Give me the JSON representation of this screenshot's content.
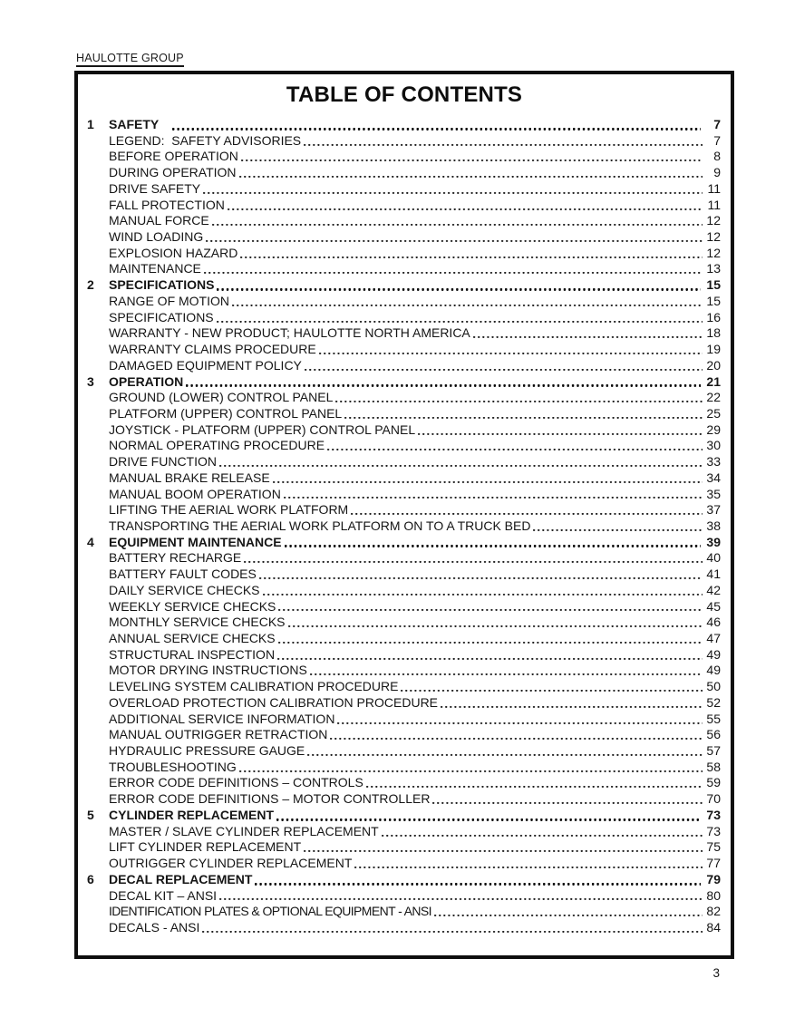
{
  "header": {
    "brand": "HAULOTTE GROUP"
  },
  "footer": {
    "page_number": "3"
  },
  "toc": {
    "title": "TABLE OF CONTENTS",
    "sections": [
      {
        "num": "1",
        "title": "SAFETY",
        "page": "7",
        "entries": [
          {
            "title": "LEGEND:  SAFETY ADVISORIES",
            "page": "7"
          },
          {
            "title": "BEFORE OPERATION",
            "page": "8"
          },
          {
            "title": "DURING OPERATION",
            "page": "9"
          },
          {
            "title": "DRIVE SAFETY",
            "page": "11"
          },
          {
            "title": "FALL PROTECTION",
            "page": "11"
          },
          {
            "title": "MANUAL FORCE",
            "page": "12"
          },
          {
            "title": "WIND LOADING",
            "page": "12"
          },
          {
            "title": "EXPLOSION HAZARD",
            "page": "12"
          },
          {
            "title": "MAINTENANCE",
            "page": "13"
          }
        ]
      },
      {
        "num": "2",
        "title": "SPECIFICATIONS",
        "page": "15",
        "entries": [
          {
            "title": "RANGE OF MOTION",
            "page": "15"
          },
          {
            "title": "SPECIFICATIONS",
            "page": "16"
          },
          {
            "title": "WARRANTY - NEW PRODUCT; HAULOTTE NORTH AMERICA",
            "page": "18"
          },
          {
            "title": "WARRANTY CLAIMS PROCEDURE",
            "page": "19"
          },
          {
            "title": "DAMAGED EQUIPMENT POLICY",
            "page": "20"
          }
        ]
      },
      {
        "num": "3",
        "title": "OPERATION",
        "page": "21",
        "entries": [
          {
            "title": "GROUND (LOWER) CONTROL PANEL",
            "page": "22"
          },
          {
            "title": "PLATFORM (UPPER) CONTROL PANEL",
            "page": "25"
          },
          {
            "title": "JOYSTICK - PLATFORM (UPPER) CONTROL PANEL",
            "page": "29"
          },
          {
            "title": "NORMAL OPERATING PROCEDURE",
            "page": "30"
          },
          {
            "title": "DRIVE FUNCTION",
            "page": "33"
          },
          {
            "title": "MANUAL BRAKE RELEASE",
            "page": "34"
          },
          {
            "title": "MANUAL BOOM OPERATION",
            "page": "35"
          },
          {
            "title": "LIFTING THE AERIAL WORK PLATFORM",
            "page": "37"
          },
          {
            "title": "TRANSPORTING THE AERIAL WORK PLATFORM ON TO A TRUCK BED",
            "page": "38"
          }
        ]
      },
      {
        "num": "4",
        "title": "EQUIPMENT MAINTENANCE",
        "page": "39",
        "entries": [
          {
            "title": "BATTERY RECHARGE",
            "page": "40"
          },
          {
            "title": "BATTERY FAULT CODES",
            "page": "41"
          },
          {
            "title": "DAILY SERVICE CHECKS",
            "page": "42"
          },
          {
            "title": "WEEKLY SERVICE CHECKS",
            "page": "45"
          },
          {
            "title": "MONTHLY SERVICE CHECKS",
            "page": "46"
          },
          {
            "title": "ANNUAL SERVICE CHECKS",
            "page": "47"
          },
          {
            "title": "STRUCTURAL INSPECTION",
            "page": "49"
          },
          {
            "title": "MOTOR DRYING INSTRUCTIONS",
            "page": "49"
          },
          {
            "title": "LEVELING SYSTEM CALIBRATION PROCEDURE",
            "page": "50"
          },
          {
            "title": "OVERLOAD PROTECTION CALIBRATION PROCEDURE",
            "page": "52"
          },
          {
            "title": "ADDITIONAL SERVICE INFORMATION",
            "page": "55"
          },
          {
            "title": "MANUAL OUTRIGGER RETRACTION",
            "page": "56"
          },
          {
            "title": "HYDRAULIC PRESSURE GAUGE",
            "page": "57"
          },
          {
            "title": "TROUBLESHOOTING",
            "page": "58"
          },
          {
            "title": "ERROR CODE DEFINITIONS – CONTROLS",
            "page": "59"
          },
          {
            "title": "ERROR CODE DEFINITIONS – MOTOR CONTROLLER",
            "page": "70"
          }
        ]
      },
      {
        "num": "5",
        "title": "CYLINDER REPLACEMENT",
        "page": "73",
        "entries": [
          {
            "title": "MASTER / SLAVE CYLINDER REPLACEMENT",
            "page": "73"
          },
          {
            "title": "LIFT CYLINDER REPLACEMENT",
            "page": "75"
          },
          {
            "title": "OUTRIGGER CYLINDER REPLACEMENT",
            "page": "77"
          }
        ]
      },
      {
        "num": "6",
        "title": "DECAL REPLACEMENT",
        "page": "79",
        "entries": [
          {
            "title": "DECAL KIT – ANSI",
            "page": "80"
          },
          {
            "title": "IDENTIFICATION PLATES & OPTIONAL EQUIPMENT - ANSI",
            "page": "82",
            "narrow": true
          },
          {
            "title": "DECALS - ANSI",
            "page": "84"
          }
        ]
      }
    ]
  }
}
